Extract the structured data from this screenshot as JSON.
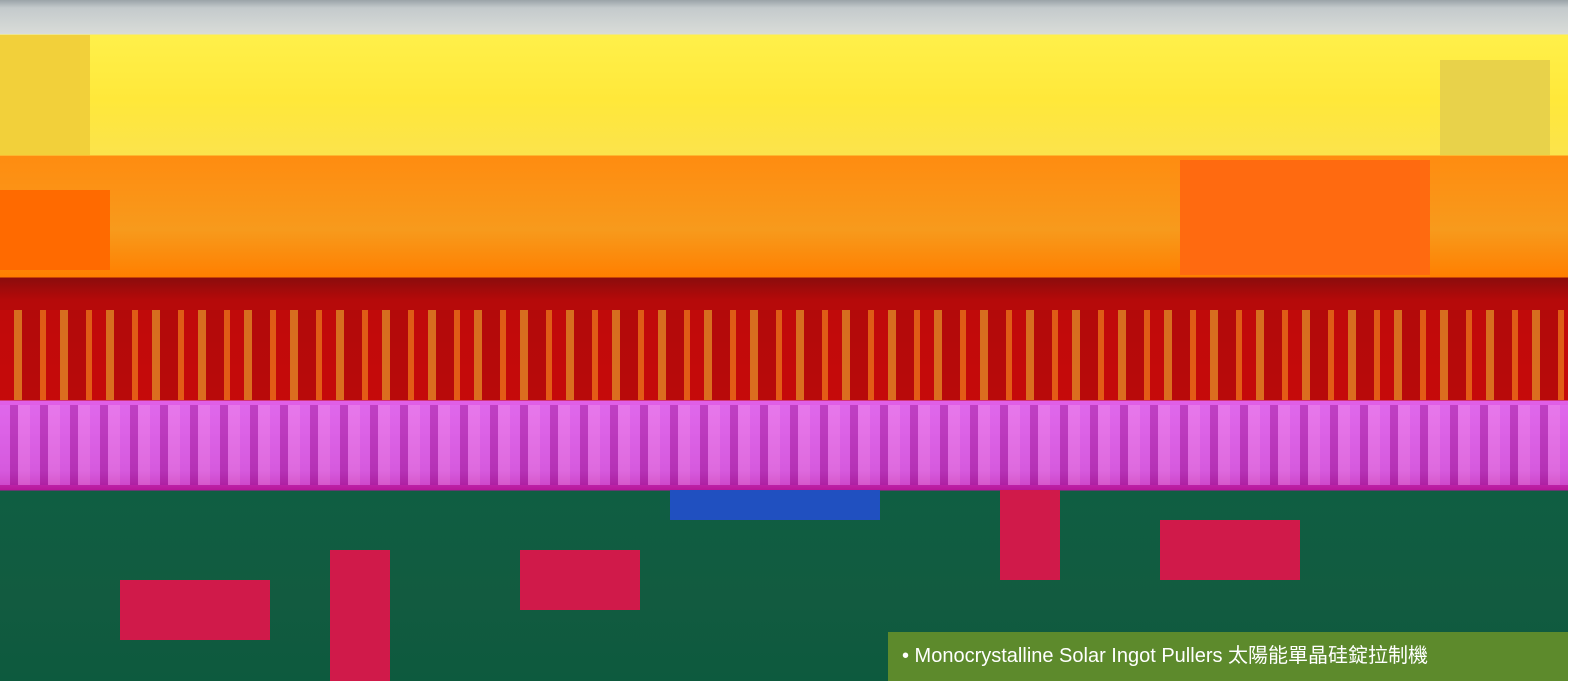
{
  "caption": {
    "text": "• Monocrystalline Solar Ingot Pullers 太陽能單晶硅錠拉制機"
  }
}
